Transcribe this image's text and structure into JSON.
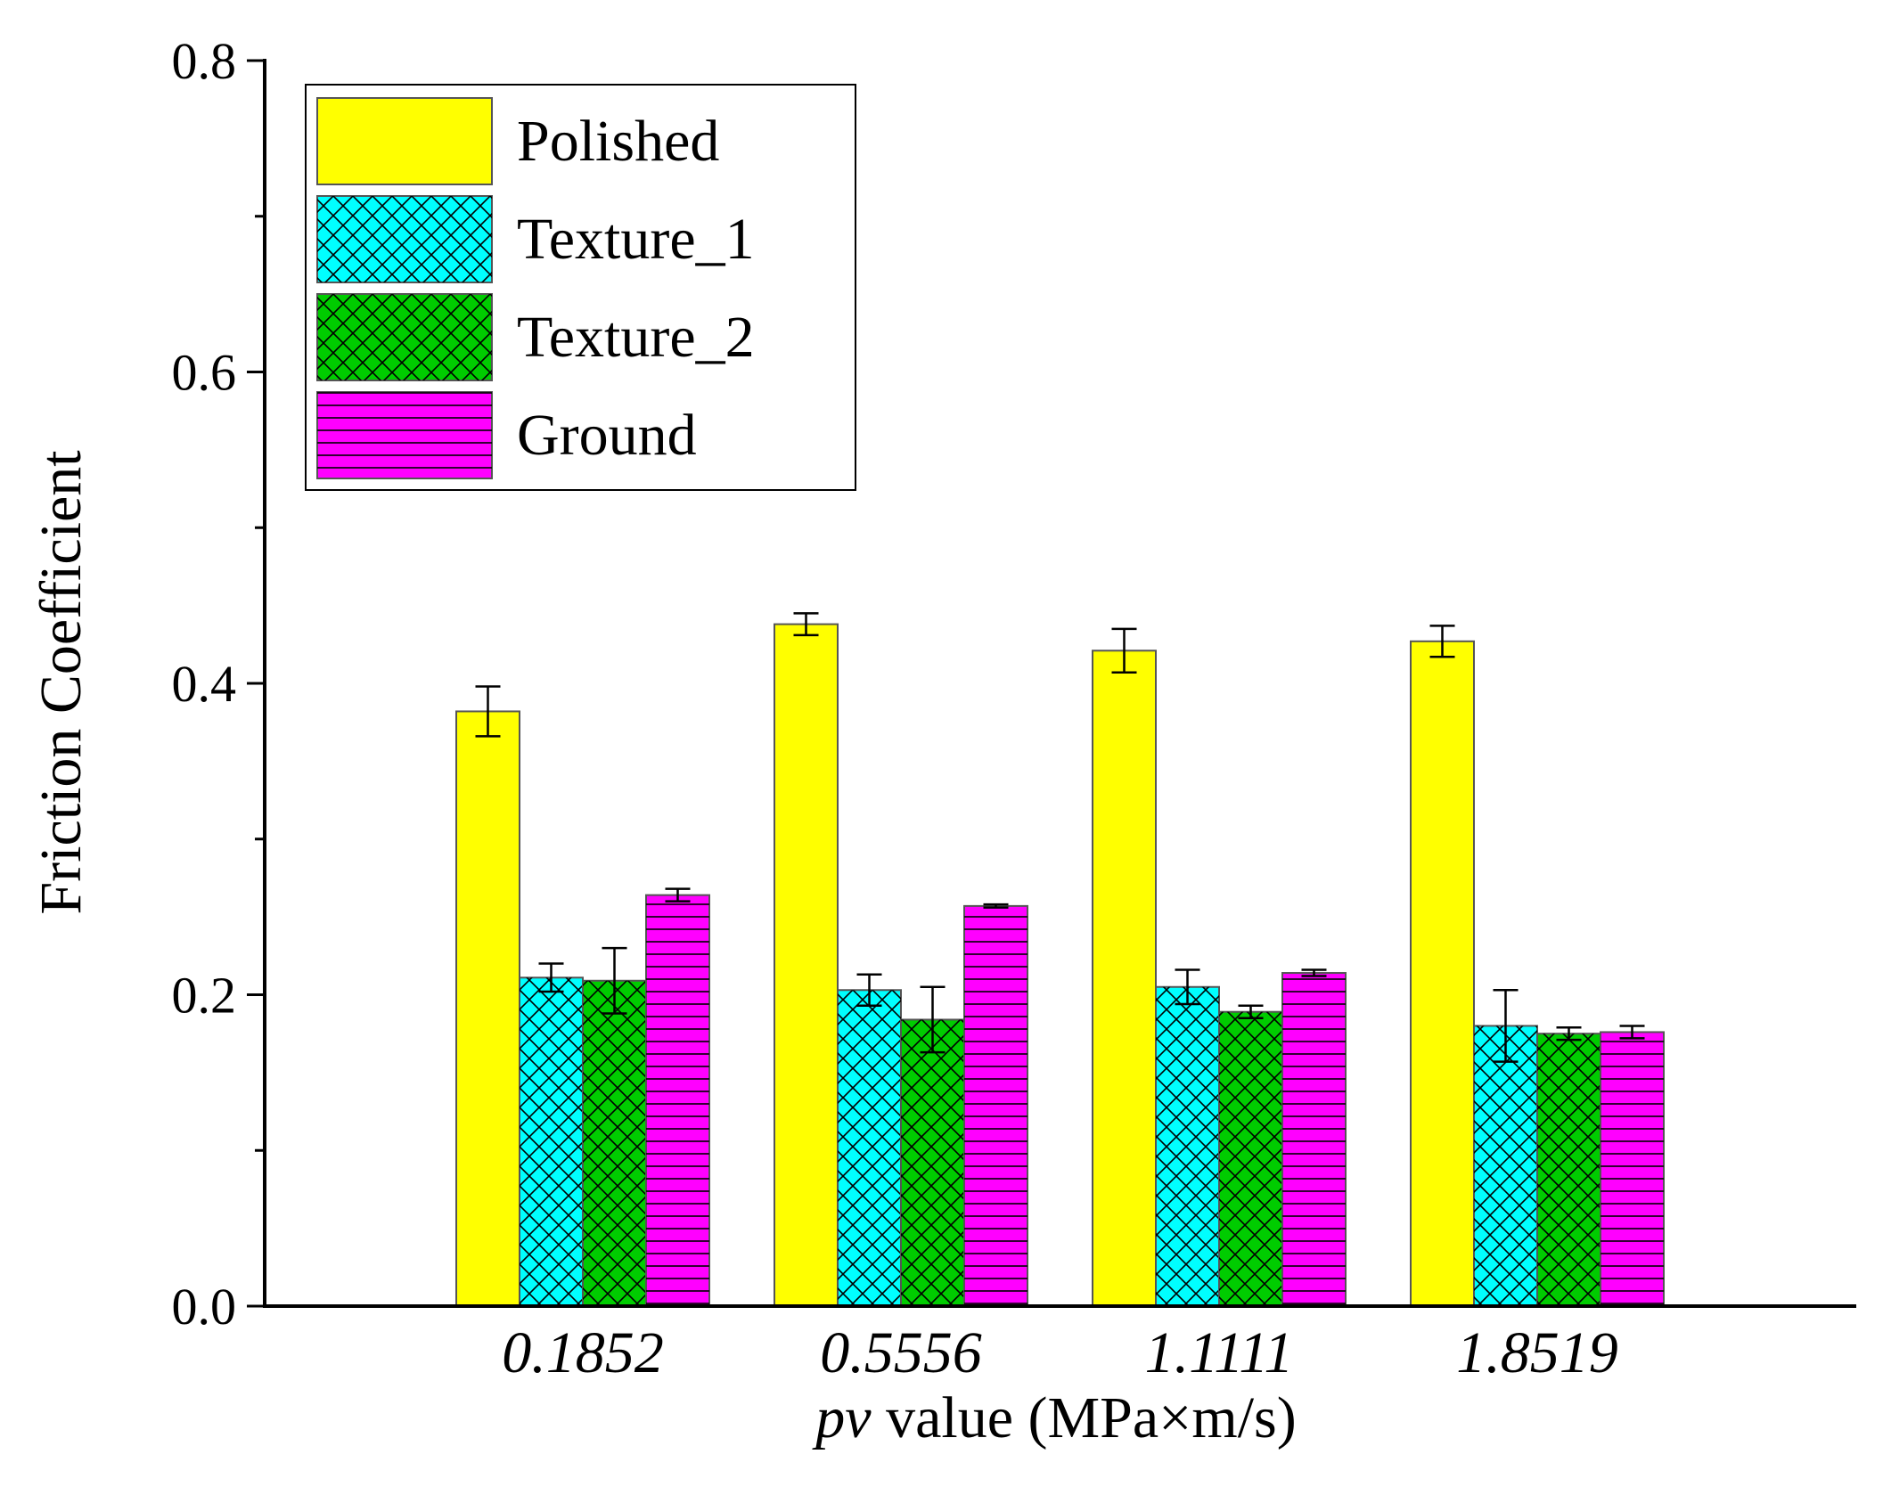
{
  "chart_data": {
    "type": "bar",
    "title": "",
    "xlabel_italic": "pv",
    "xlabel_rest": " value (MPa×m/s)",
    "ylabel": "Friction Coefficient",
    "ylim": [
      0,
      0.8
    ],
    "yticks": [
      "0.0",
      "0.2",
      "0.4",
      "0.6",
      "0.8"
    ],
    "ytick_values": [
      0,
      0.2,
      0.4,
      0.6,
      0.8
    ],
    "legend_position": "top-left",
    "categories": [
      "0.1852",
      "0.5556",
      "1.1111",
      "1.8519"
    ],
    "series": [
      {
        "name": "Polished",
        "color": "#ffff00",
        "pattern": "solid",
        "values": [
          0.382,
          0.438,
          0.421,
          0.427
        ],
        "errors": [
          0.016,
          0.007,
          0.014,
          0.01
        ]
      },
      {
        "name": "Texture_1",
        "color": "#00ffff",
        "pattern": "crosshatch",
        "values": [
          0.211,
          0.203,
          0.205,
          0.18
        ],
        "errors": [
          0.009,
          0.01,
          0.011,
          0.023
        ]
      },
      {
        "name": "Texture_2",
        "color": "#00cc00",
        "pattern": "crosshatch",
        "values": [
          0.209,
          0.184,
          0.189,
          0.175
        ],
        "errors": [
          0.021,
          0.021,
          0.004,
          0.004
        ]
      },
      {
        "name": "Ground",
        "color": "#ff00ff",
        "pattern": "horizontal",
        "values": [
          0.264,
          0.257,
          0.214,
          0.176
        ],
        "errors": [
          0.004,
          0.001,
          0.002,
          0.004
        ]
      }
    ]
  }
}
